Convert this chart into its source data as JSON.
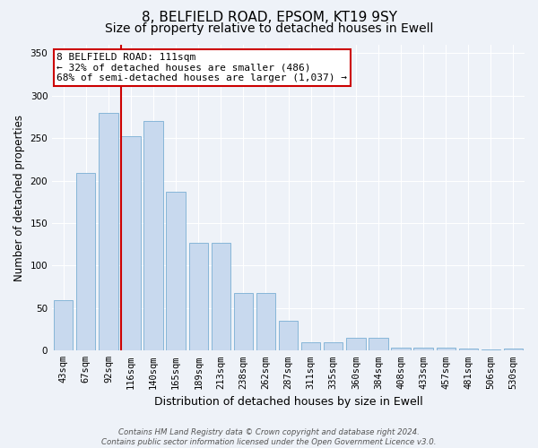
{
  "title1": "8, BELFIELD ROAD, EPSOM, KT19 9SY",
  "title2": "Size of property relative to detached houses in Ewell",
  "xlabel": "Distribution of detached houses by size in Ewell",
  "ylabel": "Number of detached properties",
  "categories": [
    "43sqm",
    "67sqm",
    "92sqm",
    "116sqm",
    "140sqm",
    "165sqm",
    "189sqm",
    "213sqm",
    "238sqm",
    "262sqm",
    "287sqm",
    "311sqm",
    "335sqm",
    "360sqm",
    "384sqm",
    "408sqm",
    "433sqm",
    "457sqm",
    "481sqm",
    "506sqm",
    "530sqm"
  ],
  "values": [
    59,
    209,
    280,
    252,
    270,
    187,
    127,
    127,
    68,
    68,
    35,
    10,
    10,
    15,
    15,
    3,
    3,
    3,
    2,
    1,
    2
  ],
  "bar_color": "#c8d9ee",
  "bar_edge_color": "#7aafd4",
  "vline_index": 2.575,
  "vline_color": "#cc0000",
  "annotation_text": "8 BELFIELD ROAD: 111sqm\n← 32% of detached houses are smaller (486)\n68% of semi-detached houses are larger (1,037) →",
  "annotation_box_color": "white",
  "annotation_box_edge": "#cc0000",
  "ylim": [
    0,
    360
  ],
  "yticks": [
    0,
    50,
    100,
    150,
    200,
    250,
    300,
    350
  ],
  "footnote": "Contains HM Land Registry data © Crown copyright and database right 2024.\nContains public sector information licensed under the Open Government Licence v3.0.",
  "bg_color": "#eef2f8",
  "grid_color": "#ffffff",
  "title_fontsize": 11,
  "subtitle_fontsize": 10,
  "tick_fontsize": 7.5,
  "xlabel_fontsize": 9,
  "ylabel_fontsize": 8.5,
  "annotation_fontsize": 8
}
